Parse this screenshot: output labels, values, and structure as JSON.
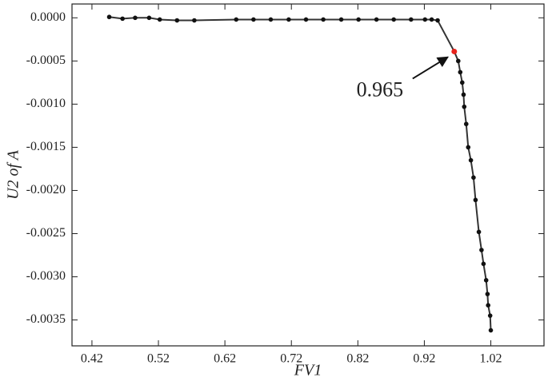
{
  "chart_data": {
    "type": "line",
    "x_label": "FV1",
    "y_label": "U2 of A",
    "color": "#333333",
    "marker_color": "#111111",
    "xlim": [
      0.39,
      1.1
    ],
    "ylim": [
      -0.0038,
      0.00016
    ],
    "xticks": [
      0.42,
      0.52,
      0.62,
      0.72,
      0.82,
      0.92,
      1.02
    ],
    "yticks": [
      {
        "value": 0,
        "label": "0.0000"
      },
      {
        "value": -0.0005,
        "label": "-0.0005"
      },
      {
        "value": -0.001,
        "label": "-0.0010"
      },
      {
        "value": -0.0015,
        "label": "-0.0015"
      },
      {
        "value": -0.002,
        "label": "-0.0020"
      },
      {
        "value": -0.0025,
        "label": "-0.0025"
      },
      {
        "value": -0.003,
        "label": "-0.0030"
      },
      {
        "value": -0.0035,
        "label": "-0.0035"
      }
    ],
    "x": [
      0.446,
      0.466,
      0.485,
      0.506,
      0.522,
      0.548,
      0.574,
      0.637,
      0.663,
      0.689,
      0.716,
      0.742,
      0.768,
      0.795,
      0.821,
      0.848,
      0.874,
      0.9,
      0.921,
      0.931,
      0.94,
      0.971,
      0.974,
      0.977,
      0.979,
      0.98,
      0.983,
      0.986,
      0.99,
      0.994,
      0.997,
      1.002,
      1.006,
      1.009,
      1.013,
      1.015,
      1.016,
      1.019,
      1.02
    ],
    "values": [
      1e-05,
      -1e-05,
      0,
      0,
      -2e-05,
      -3e-05,
      -3e-05,
      -2e-05,
      -2e-05,
      -2e-05,
      -2e-05,
      -2e-05,
      -2e-05,
      -2e-05,
      -2e-05,
      -2e-05,
      -2e-05,
      -2e-05,
      -2e-05,
      -2e-05,
      -3e-05,
      -0.0005,
      -0.00063,
      -0.00075,
      -0.00089,
      -0.00103,
      -0.00123,
      -0.0015,
      -0.00165,
      -0.00185,
      -0.00211,
      -0.00248,
      -0.00269,
      -0.00285,
      -0.00304,
      -0.0032,
      -0.00333,
      -0.00345,
      -0.00362
    ],
    "annotation": {
      "text": "0.965",
      "x": 0.965,
      "y": -0.00039,
      "color": "#e8231c"
    }
  }
}
